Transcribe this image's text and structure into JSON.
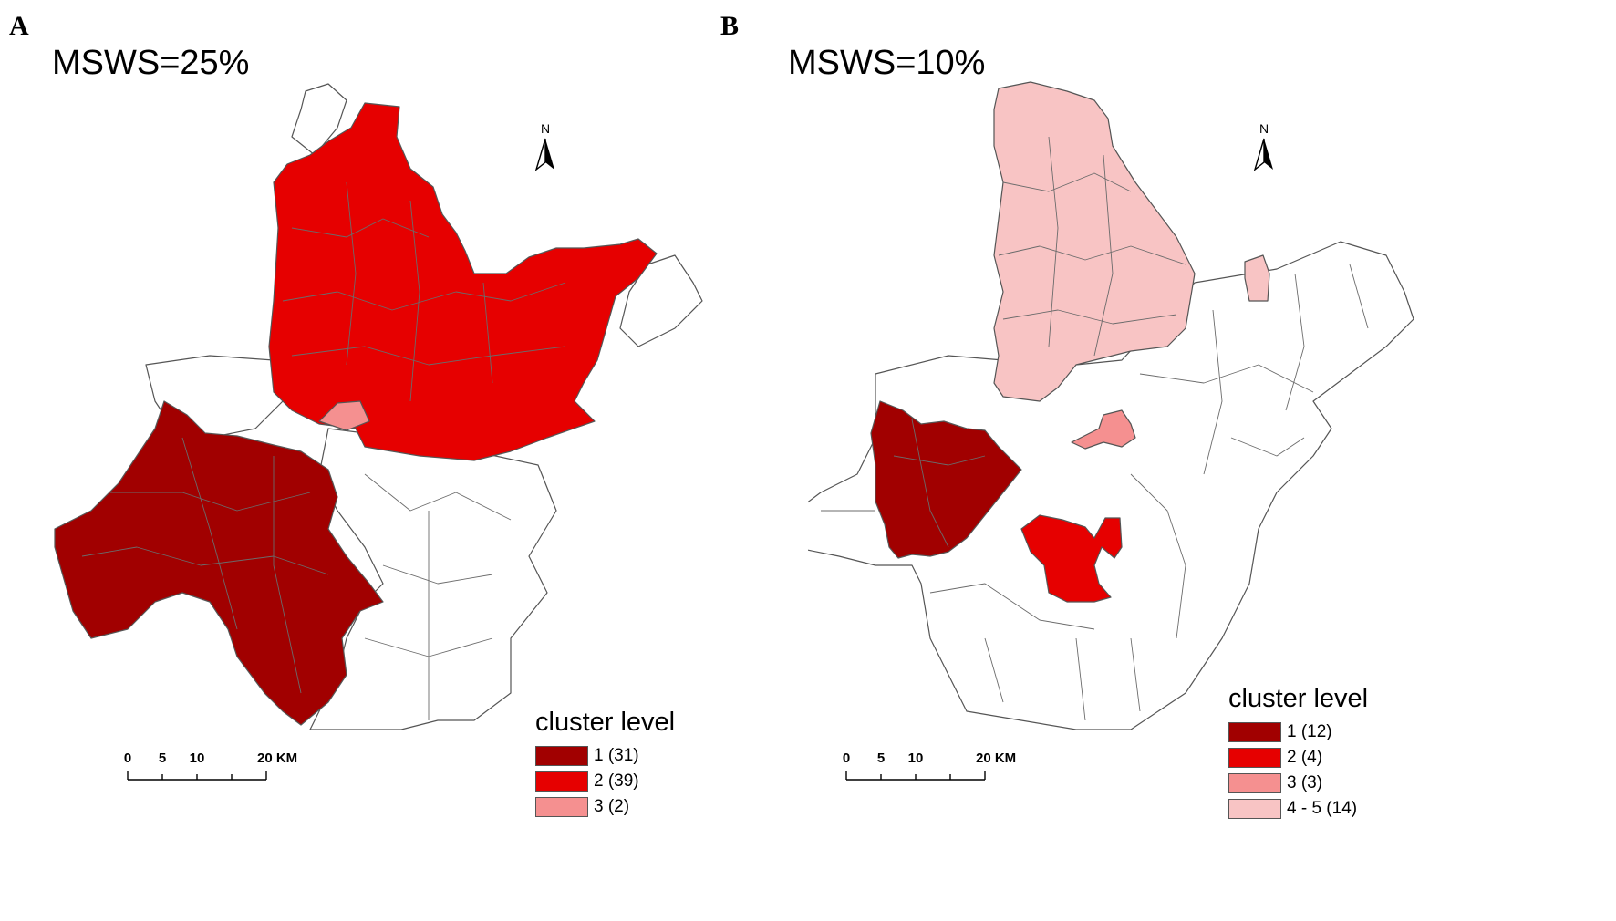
{
  "panels": [
    {
      "letter": "A",
      "title": "MSWS=25%",
      "north": "N",
      "scale": {
        "t0": "0",
        "t1": "5",
        "t2": "10",
        "t3": "20 KM"
      },
      "legend": {
        "title": "cluster level",
        "items": [
          {
            "label": "1 (31)",
            "color": "#a10000"
          },
          {
            "label": "2 (39)",
            "color": "#e60000"
          },
          {
            "label": "3 (2)",
            "color": "#f59090"
          }
        ]
      }
    },
    {
      "letter": "B",
      "title": "MSWS=10%",
      "north": "N",
      "scale": {
        "t0": "0",
        "t1": "5",
        "t2": "10",
        "t3": "20 KM"
      },
      "legend": {
        "title": "cluster level",
        "items": [
          {
            "label": "1 (12)",
            "color": "#a10000"
          },
          {
            "label": "2 (4)",
            "color": "#e60000"
          },
          {
            "label": "3 (3)",
            "color": "#f59090"
          },
          {
            "label": "4 - 5 (14)",
            "color": "#f8c4c4"
          }
        ]
      }
    }
  ],
  "colors": {
    "level1": "#a10000",
    "level2": "#e60000",
    "level3": "#f59090",
    "level4_5": "#f8c4c4",
    "unclustered": "#ffffff",
    "boundary": "#555555"
  },
  "icons": {
    "north_arrow": "north-arrow-icon",
    "scale_bar": "scale-bar-icon"
  }
}
